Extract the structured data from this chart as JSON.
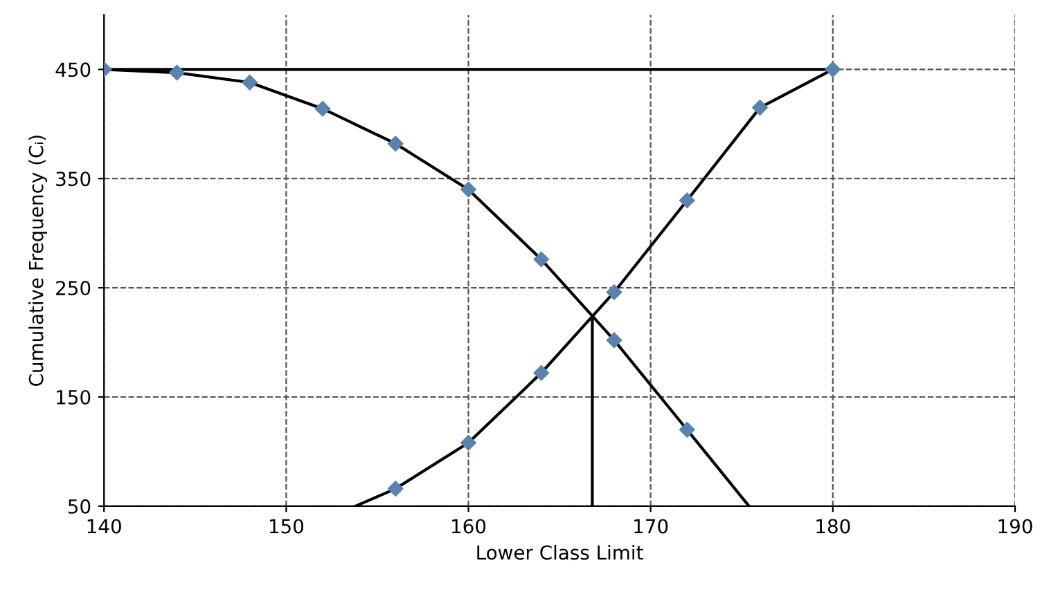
{
  "chart_data": {
    "type": "line",
    "xlabel": "Lower Class Limit",
    "ylabel": "Cumulative Frequency (Cᵢ)",
    "xlim": [
      140,
      190
    ],
    "xticks": [
      140,
      150,
      160,
      170,
      180,
      190
    ],
    "ylim": [
      50,
      500
    ],
    "yticks": [
      50,
      150,
      250,
      350,
      450
    ],
    "grid": true,
    "legend": false,
    "line_style": "solid",
    "series": [
      {
        "color": "#5b82ad",
        "marker": "diamond",
        "x": [
          140,
          144,
          148,
          152,
          156,
          160,
          164,
          168,
          172
        ],
        "values": [
          450,
          447,
          438,
          414,
          382,
          340,
          276,
          202,
          120
        ]
      },
      {
        "color": "#000000",
        "marker": "none",
        "x": [
          172,
          175.4
        ],
        "values": [
          120,
          50
        ]
      },
      {
        "color": "#5b82ad",
        "marker": "diamond",
        "x": [
          156,
          160,
          164,
          168,
          172,
          176,
          180
        ],
        "values": [
          66,
          108,
          172,
          246,
          330,
          415,
          450
        ]
      },
      {
        "color": "#000000",
        "marker": "none",
        "x": [
          153.8,
          156
        ],
        "values": [
          50,
          66
        ]
      },
      {
        "color": "#000000",
        "marker": "none",
        "x": [
          140,
          180
        ],
        "values": [
          450,
          450
        ]
      },
      {
        "color": "#000000",
        "marker": "none",
        "x": [
          166.8,
          166.8
        ],
        "values": [
          50,
          224
        ]
      }
    ]
  }
}
